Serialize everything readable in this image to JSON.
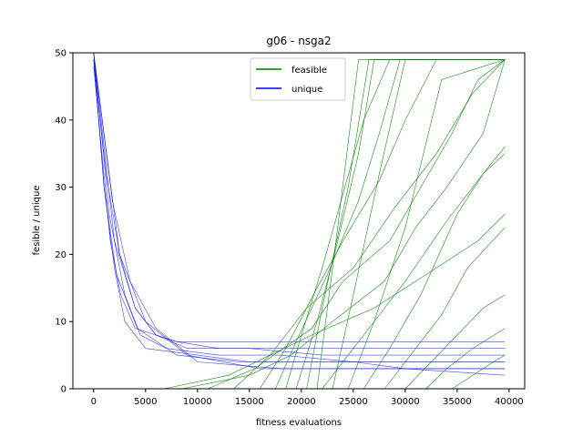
{
  "chart_data": {
    "type": "line",
    "title": "g06  -  nsga2",
    "xlabel": "fitness evaluations",
    "ylabel": "fesible / unique",
    "xlim": [
      -2000,
      41500
    ],
    "ylim": [
      0,
      50
    ],
    "xticks": [
      0,
      5000,
      10000,
      15000,
      20000,
      25000,
      30000,
      35000,
      40000
    ],
    "yticks": [
      0,
      10,
      20,
      30,
      40,
      50
    ],
    "legend": {
      "placement": "top-center",
      "entries": [
        {
          "name": "feasible",
          "color": "#008000"
        },
        {
          "name": "unique",
          "color": "#0000ff"
        }
      ]
    },
    "grid": false,
    "series": [
      {
        "name": "feasible",
        "color": "#008000",
        "runs": [
          {
            "x": [
              0,
              6800,
              13000,
              21000,
              27000,
              33000,
              37000,
              39600
            ],
            "y": [
              0,
              0,
              2,
              8,
              12,
              18,
              22,
              26
            ]
          },
          {
            "x": [
              0,
              8500,
              15000,
              19000,
              23000,
              28000,
              31000,
              34000,
              37500,
              39600
            ],
            "y": [
              0,
              0,
              2,
              5,
              10,
              16,
              24,
              30,
              38,
              49
            ]
          },
          {
            "x": [
              0,
              11000,
              15500,
              21000,
              24000,
              28500,
              31500,
              34500,
              37000,
              39600
            ],
            "y": [
              0,
              0,
              3,
              9,
              16,
              22,
              30,
              38,
              46,
              49
            ]
          },
          {
            "x": [
              0,
              13500,
              17000,
              20500,
              25000,
              29000,
              33000,
              36500,
              39600
            ],
            "y": [
              0,
              0,
              5,
              12,
              18,
              27,
              35,
              44,
              49
            ]
          },
          {
            "x": [
              0,
              16000,
              18500,
              21500,
              24000,
              27500,
              30000,
              33000,
              39600
            ],
            "y": [
              0,
              0,
              6,
              15,
              22,
              31,
              40,
              49,
              49
            ]
          },
          {
            "x": [
              0,
              17500,
              19500,
              22500,
              25500,
              27500,
              29500,
              39600
            ],
            "y": [
              0,
              0,
              7,
              17,
              28,
              38,
              49,
              49
            ]
          },
          {
            "x": [
              0,
              18500,
              20000,
              22000,
              24000,
              26000,
              28500,
              39600
            ],
            "y": [
              0,
              0,
              8,
              18,
              29,
              40,
              49,
              49
            ]
          },
          {
            "x": [
              0,
              19500,
              21500,
              23500,
              25500,
              27000,
              39600
            ],
            "y": [
              0,
              0,
              10,
              22,
              35,
              49,
              49
            ]
          },
          {
            "x": [
              0,
              20500,
              22000,
              24500,
              26500,
              39600
            ],
            "y": [
              0,
              0,
              12,
              30,
              49,
              49
            ]
          },
          {
            "x": [
              0,
              21500,
              23000,
              25500,
              39600
            ],
            "y": [
              0,
              0,
              18,
              49,
              49
            ]
          },
          {
            "x": [
              0,
              23000,
              25000,
              27500,
              30000,
              39600
            ],
            "y": [
              0,
              0,
              14,
              32,
              49,
              49
            ]
          },
          {
            "x": [
              0,
              24500,
              27000,
              30000,
              33500,
              39600
            ],
            "y": [
              0,
              0,
              10,
              24,
              46,
              49
            ]
          },
          {
            "x": [
              0,
              26000,
              28500,
              31500,
              35000,
              37500,
              39600
            ],
            "y": [
              0,
              0,
              6,
              14,
              26,
              32,
              35
            ]
          },
          {
            "x": [
              0,
              28000,
              30500,
              33500,
              36000,
              39600
            ],
            "y": [
              0,
              0,
              5,
              11,
              18,
              24
            ]
          },
          {
            "x": [
              0,
              30000,
              32500,
              35000,
              37500,
              39600
            ],
            "y": [
              0,
              0,
              4,
              8,
              12,
              14
            ]
          },
          {
            "x": [
              0,
              32000,
              34000,
              36500,
              39600
            ],
            "y": [
              0,
              0,
              3,
              6,
              9
            ]
          },
          {
            "x": [
              0,
              34500,
              36500,
              38500,
              39600
            ],
            "y": [
              0,
              0,
              2,
              4,
              5
            ]
          },
          {
            "x": [
              0,
              22000,
              26000,
              30000,
              34000,
              38000,
              39600
            ],
            "y": [
              0,
              0,
              8,
              16,
              25,
              33,
              36
            ]
          }
        ]
      },
      {
        "name": "unique",
        "color": "#0000ff",
        "runs": [
          {
            "x": [
              0,
              1000,
              2000,
              3000,
              5000,
              10000,
              15000,
              20000,
              25000,
              30000,
              35000,
              39600
            ],
            "y": [
              50,
              30,
              18,
              10,
              6,
              5,
              4,
              4,
              4,
              3,
              3,
              3
            ]
          },
          {
            "x": [
              0,
              1500,
              3000,
              4500,
              7000,
              12000,
              18000,
              25000,
              32000,
              39600
            ],
            "y": [
              50,
              26,
              14,
              8,
              6,
              5,
              5,
              4,
              4,
              4
            ]
          },
          {
            "x": [
              0,
              1200,
              2500,
              4000,
              6000,
              9000,
              15000,
              22000,
              30000,
              39600
            ],
            "y": [
              49,
              32,
              20,
              12,
              8,
              6,
              6,
              5,
              5,
              5
            ]
          },
          {
            "x": [
              0,
              2000,
              4000,
              6000,
              8000,
              12000,
              20000,
              28000,
              39600
            ],
            "y": [
              50,
              22,
              12,
              8,
              7,
              6,
              6,
              6,
              6
            ]
          },
          {
            "x": [
              0,
              800,
              1600,
              2600,
              4000,
              8000,
              14000,
              24000,
              39600
            ],
            "y": [
              48,
              35,
              22,
              14,
              9,
              7,
              7,
              7,
              7
            ]
          },
          {
            "x": [
              0,
              1800,
              3500,
              6000,
              10000,
              18000,
              30000,
              39600
            ],
            "y": [
              50,
              28,
              16,
              9,
              4,
              3,
              3,
              2
            ]
          },
          {
            "x": [
              0,
              2500,
              5000,
              9000,
              16000,
              26000,
              39600
            ],
            "y": [
              50,
              20,
              10,
              5,
              3,
              3,
              3
            ]
          },
          {
            "x": [
              0,
              1000,
              2200,
              4200,
              8000,
              14000,
              22000,
              39600
            ],
            "y": [
              49,
              30,
              17,
              9,
              5,
              4,
              4,
              4
            ]
          }
        ]
      }
    ]
  }
}
